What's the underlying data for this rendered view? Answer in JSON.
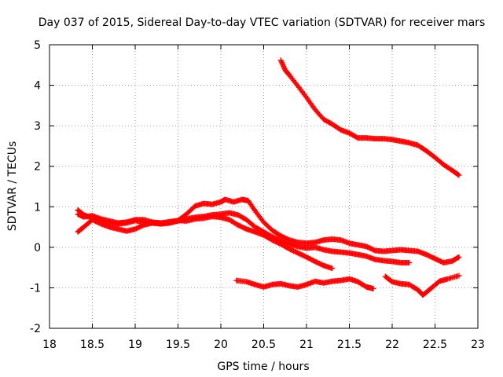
{
  "chart_data": {
    "type": "scatter",
    "title": "Day 037 of 2015, Sidereal Day-to-day VTEC variation (SDTVAR) for receiver mars",
    "xlabel": "GPS time / hours",
    "ylabel": "SDTVAR / TECUs",
    "xlim": [
      18,
      23
    ],
    "ylim": [
      -2,
      5
    ],
    "x_ticks": [
      18,
      18.5,
      19,
      19.5,
      20,
      20.5,
      21,
      21.5,
      22,
      22.5,
      23
    ],
    "x_tick_labels": [
      "18",
      "18.5",
      "19",
      "19.5",
      "20",
      "20.5",
      "21",
      "21.5",
      "22",
      "22.5",
      "23"
    ],
    "y_ticks": [
      -2,
      -1,
      0,
      1,
      2,
      3,
      4,
      5
    ],
    "y_tick_labels": [
      "-2",
      "-1",
      "0",
      "1",
      "2",
      "3",
      "4",
      "5"
    ],
    "grid": true,
    "marker": "+",
    "color": "#ff0000",
    "series": [
      {
        "name": "track-1",
        "points": [
          [
            18.33,
            0.92
          ],
          [
            18.4,
            0.8
          ],
          [
            18.5,
            0.72
          ],
          [
            18.6,
            0.68
          ],
          [
            18.7,
            0.6
          ],
          [
            18.8,
            0.58
          ],
          [
            18.9,
            0.6
          ],
          [
            19.0,
            0.66
          ],
          [
            19.1,
            0.62
          ],
          [
            19.2,
            0.6
          ],
          [
            19.3,
            0.58
          ],
          [
            19.4,
            0.6
          ],
          [
            19.5,
            0.66
          ],
          [
            19.6,
            0.82
          ],
          [
            19.7,
            1.02
          ],
          [
            19.8,
            1.08
          ],
          [
            19.9,
            1.06
          ],
          [
            20.0,
            1.12
          ],
          [
            20.05,
            1.18
          ],
          [
            20.15,
            1.12
          ],
          [
            20.25,
            1.18
          ],
          [
            20.32,
            1.15
          ],
          [
            20.4,
            0.9
          ],
          [
            20.5,
            0.62
          ],
          [
            20.6,
            0.42
          ],
          [
            20.7,
            0.28
          ],
          [
            20.8,
            0.18
          ],
          [
            20.9,
            0.12
          ],
          [
            21.0,
            0.1
          ],
          [
            21.1,
            0.12
          ],
          [
            21.2,
            0.18
          ],
          [
            21.3,
            0.2
          ],
          [
            21.4,
            0.18
          ],
          [
            21.5,
            0.1
          ],
          [
            21.6,
            0.06
          ],
          [
            21.7,
            0.02
          ],
          [
            21.8,
            -0.08
          ],
          [
            21.9,
            -0.1
          ],
          [
            22.0,
            -0.08
          ],
          [
            22.1,
            -0.06
          ],
          [
            22.2,
            -0.08
          ],
          [
            22.3,
            -0.1
          ],
          [
            22.4,
            -0.18
          ],
          [
            22.5,
            -0.28
          ],
          [
            22.6,
            -0.38
          ],
          [
            22.7,
            -0.34
          ],
          [
            22.78,
            -0.24
          ]
        ]
      },
      {
        "name": "track-2",
        "points": [
          [
            18.33,
            0.38
          ],
          [
            18.4,
            0.5
          ],
          [
            18.5,
            0.68
          ],
          [
            18.6,
            0.58
          ],
          [
            18.7,
            0.5
          ],
          [
            18.8,
            0.45
          ],
          [
            18.9,
            0.4
          ],
          [
            19.0,
            0.45
          ],
          [
            19.1,
            0.55
          ],
          [
            19.2,
            0.6
          ],
          [
            19.3,
            0.58
          ],
          [
            19.4,
            0.6
          ],
          [
            19.5,
            0.65
          ],
          [
            19.6,
            0.7
          ],
          [
            19.7,
            0.74
          ],
          [
            19.8,
            0.76
          ],
          [
            19.9,
            0.8
          ],
          [
            20.0,
            0.82
          ],
          [
            20.1,
            0.85
          ],
          [
            20.2,
            0.8
          ],
          [
            20.3,
            0.68
          ],
          [
            20.4,
            0.5
          ],
          [
            20.5,
            0.38
          ],
          [
            20.6,
            0.26
          ],
          [
            20.7,
            0.16
          ],
          [
            20.8,
            0.08
          ],
          [
            20.9,
            0.02
          ],
          [
            21.0,
            -0.02
          ],
          [
            21.1,
            0.0
          ],
          [
            21.2,
            -0.06
          ],
          [
            21.3,
            -0.1
          ],
          [
            21.4,
            -0.12
          ],
          [
            21.5,
            -0.14
          ],
          [
            21.6,
            -0.18
          ],
          [
            21.7,
            -0.22
          ],
          [
            21.8,
            -0.3
          ],
          [
            21.9,
            -0.33
          ],
          [
            22.0,
            -0.35
          ],
          [
            22.1,
            -0.38
          ],
          [
            22.2,
            -0.38
          ]
        ]
      },
      {
        "name": "track-3",
        "points": [
          [
            18.33,
            0.82
          ],
          [
            18.4,
            0.75
          ],
          [
            18.5,
            0.78
          ],
          [
            18.6,
            0.7
          ],
          [
            18.7,
            0.65
          ],
          [
            18.8,
            0.6
          ],
          [
            18.9,
            0.62
          ],
          [
            19.0,
            0.68
          ],
          [
            19.1,
            0.68
          ],
          [
            19.2,
            0.62
          ],
          [
            19.3,
            0.6
          ],
          [
            19.4,
            0.63
          ],
          [
            19.5,
            0.66
          ],
          [
            19.6,
            0.65
          ],
          [
            19.7,
            0.7
          ],
          [
            19.8,
            0.72
          ],
          [
            19.9,
            0.76
          ],
          [
            20.0,
            0.74
          ],
          [
            20.1,
            0.68
          ],
          [
            20.2,
            0.55
          ],
          [
            20.3,
            0.45
          ],
          [
            20.4,
            0.38
          ],
          [
            20.5,
            0.3
          ],
          [
            20.6,
            0.18
          ],
          [
            20.7,
            0.08
          ],
          [
            20.8,
            -0.04
          ],
          [
            20.9,
            -0.14
          ],
          [
            21.0,
            -0.24
          ],
          [
            21.1,
            -0.35
          ],
          [
            21.2,
            -0.45
          ],
          [
            21.3,
            -0.52
          ]
        ]
      },
      {
        "name": "track-4",
        "points": [
          [
            20.7,
            4.62
          ],
          [
            20.75,
            4.38
          ],
          [
            20.8,
            4.25
          ],
          [
            20.9,
            3.98
          ],
          [
            21.0,
            3.7
          ],
          [
            21.1,
            3.4
          ],
          [
            21.2,
            3.16
          ],
          [
            21.3,
            3.04
          ],
          [
            21.4,
            2.9
          ],
          [
            21.5,
            2.82
          ],
          [
            21.6,
            2.7
          ],
          [
            21.7,
            2.7
          ],
          [
            21.8,
            2.68
          ],
          [
            21.9,
            2.68
          ],
          [
            22.0,
            2.66
          ],
          [
            22.1,
            2.62
          ],
          [
            22.2,
            2.58
          ],
          [
            22.3,
            2.52
          ],
          [
            22.4,
            2.38
          ],
          [
            22.5,
            2.22
          ],
          [
            22.6,
            2.04
          ],
          [
            22.7,
            1.9
          ],
          [
            22.78,
            1.78
          ]
        ]
      },
      {
        "name": "track-5",
        "points": [
          [
            20.18,
            -0.82
          ],
          [
            20.3,
            -0.85
          ],
          [
            20.4,
            -0.92
          ],
          [
            20.5,
            -0.98
          ],
          [
            20.6,
            -0.92
          ],
          [
            20.7,
            -0.9
          ],
          [
            20.8,
            -0.95
          ],
          [
            20.9,
            -0.98
          ],
          [
            21.0,
            -0.92
          ],
          [
            21.1,
            -0.84
          ],
          [
            21.2,
            -0.88
          ],
          [
            21.3,
            -0.84
          ],
          [
            21.4,
            -0.82
          ],
          [
            21.5,
            -0.78
          ],
          [
            21.6,
            -0.85
          ],
          [
            21.7,
            -0.98
          ],
          [
            21.78,
            -1.02
          ]
        ]
      },
      {
        "name": "track-6",
        "points": [
          [
            21.92,
            -0.72
          ],
          [
            22.0,
            -0.85
          ],
          [
            22.1,
            -0.9
          ],
          [
            22.2,
            -0.92
          ],
          [
            22.3,
            -1.05
          ],
          [
            22.36,
            -1.18
          ],
          [
            22.45,
            -1.02
          ],
          [
            22.55,
            -0.84
          ],
          [
            22.65,
            -0.78
          ],
          [
            22.78,
            -0.7
          ]
        ]
      }
    ]
  }
}
